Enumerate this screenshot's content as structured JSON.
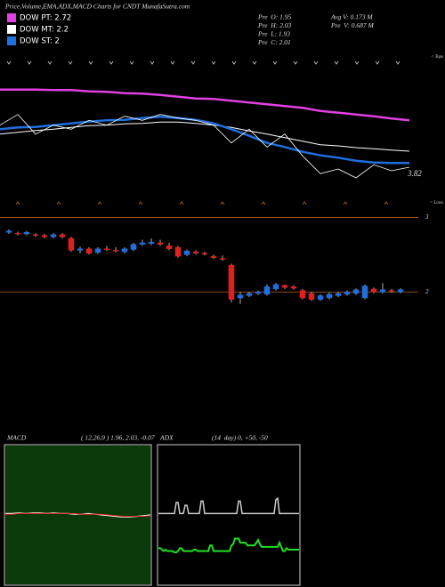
{
  "header": {
    "title": "Price,Volume,EMA,ADX,MACD Charts for CNDT MunafaSutra.com",
    "stats": [
      [
        "Pre  O: 1.95",
        "Avg V: 0.173 M"
      ],
      [
        "Pre  H: 2.03",
        "Pre  V: 0.687 M"
      ],
      [
        "Pre  L: 1.93"
      ],
      [
        "Pre  C: 2.01"
      ]
    ]
  },
  "chart_data": [
    {
      "type": "line",
      "ylim": [
        1.15,
        3.85
      ],
      "annotations": [
        "3.82",
        "< Tops",
        "< Lows"
      ],
      "series": [
        {
          "name": "DOW PT: 2.72",
          "color": "#e040e0",
          "width": 2.5,
          "values": [
            3.24,
            3.24,
            3.24,
            3.23,
            3.23,
            3.21,
            3.2,
            3.18,
            3.17,
            3.15,
            3.12,
            3.09,
            3.08,
            3.05,
            3.02,
            2.99,
            2.96,
            2.93,
            2.88,
            2.85,
            2.82,
            2.79,
            2.75,
            2.72
          ]
        },
        {
          "name": "DOW MT: 2.2",
          "color": "#ffffff",
          "width": 1,
          "values": [
            2.49,
            2.52,
            2.55,
            2.57,
            2.6,
            2.63,
            2.64,
            2.66,
            2.67,
            2.69,
            2.69,
            2.67,
            2.64,
            2.6,
            2.54,
            2.49,
            2.43,
            2.37,
            2.31,
            2.29,
            2.26,
            2.24,
            2.22,
            2.2
          ]
        },
        {
          "name": "DOW ST: 2",
          "color": "#1e6fe0",
          "width": 2.5,
          "values": [
            2.57,
            2.6,
            2.61,
            2.64,
            2.67,
            2.7,
            2.72,
            2.73,
            2.76,
            2.78,
            2.76,
            2.73,
            2.67,
            2.57,
            2.46,
            2.34,
            2.27,
            2.19,
            2.13,
            2.09,
            2.04,
            2.01,
            2.0,
            2.0
          ]
        },
        {
          "color": "#ffffff",
          "width": 0.8,
          "values": [
            2.64,
            2.82,
            2.49,
            2.64,
            2.57,
            2.72,
            2.64,
            2.79,
            2.72,
            2.82,
            2.76,
            2.72,
            2.64,
            2.34,
            2.57,
            2.27,
            2.49,
            2.12,
            1.82,
            1.9,
            1.75,
            1.97,
            1.87,
            1.93
          ]
        }
      ]
    },
    {
      "type": "candlestick",
      "ylim": [
        1.8,
        3.15
      ],
      "yticks": [
        2,
        3
      ],
      "grid": true,
      "grid_color": "#b5651d",
      "up_color": "#1e6fe0",
      "down_color": "#e02020",
      "open": [
        2.8,
        2.79,
        2.78,
        2.77,
        2.76,
        2.74,
        2.77,
        2.72,
        2.56,
        2.58,
        2.53,
        2.58,
        2.56,
        2.54,
        2.57,
        2.64,
        2.65,
        2.66,
        2.62,
        2.6,
        2.5,
        2.54,
        2.52,
        2.48,
        2.45,
        2.36,
        1.92,
        1.95,
        1.98,
        1.97,
        2.04,
        2.09,
        2.07,
        2.02,
        1.98,
        1.9,
        1.92,
        1.95,
        1.97,
        1.98,
        1.92,
        2.04,
        2.0,
        2.02,
        2.0
      ],
      "high": [
        2.84,
        2.81,
        2.82,
        2.79,
        2.78,
        2.79,
        2.79,
        2.74,
        2.61,
        2.6,
        2.6,
        2.62,
        2.6,
        2.6,
        2.66,
        2.7,
        2.72,
        2.7,
        2.66,
        2.62,
        2.57,
        2.56,
        2.54,
        2.5,
        2.49,
        2.38,
        2.0,
        2.0,
        2.02,
        2.1,
        2.12,
        2.1,
        2.09,
        2.04,
        2.0,
        1.97,
        1.99,
        2.0,
        2.02,
        2.05,
        2.1,
        2.06,
        2.12,
        2.04,
        2.05
      ],
      "low": [
        2.78,
        2.76,
        2.76,
        2.74,
        2.72,
        2.72,
        2.72,
        2.54,
        2.52,
        2.5,
        2.51,
        2.55,
        2.53,
        2.52,
        2.55,
        2.62,
        2.63,
        2.62,
        2.56,
        2.46,
        2.48,
        2.5,
        2.49,
        2.44,
        2.42,
        1.86,
        1.84,
        1.93,
        1.96,
        1.95,
        2.02,
        2.04,
        2.03,
        1.9,
        1.88,
        1.88,
        1.9,
        1.93,
        1.95,
        1.96,
        1.9,
        1.98,
        1.98,
        1.99,
        1.98
      ],
      "close": [
        2.82,
        2.78,
        2.8,
        2.76,
        2.74,
        2.77,
        2.74,
        2.56,
        2.58,
        2.52,
        2.58,
        2.57,
        2.55,
        2.58,
        2.64,
        2.66,
        2.67,
        2.64,
        2.58,
        2.48,
        2.55,
        2.52,
        2.51,
        2.46,
        2.44,
        1.9,
        1.96,
        1.98,
        2.0,
        2.07,
        2.1,
        2.06,
        2.05,
        1.92,
        1.9,
        1.95,
        1.97,
        1.98,
        2.0,
        2.03,
        2.08,
        2.0,
        2.03,
        2.01,
        2.03
      ]
    },
    {
      "type": "line",
      "title": "MACD",
      "subtitle": "( 12,26,9 ) 1.96, 2.03, -0.07",
      "ylim": [
        -1,
        1
      ],
      "background": "#0a3a0a",
      "series": [
        {
          "color": "#ffffff",
          "width": 1.2,
          "values": [
            0.02,
            0.02,
            0.03,
            0.02,
            0.03,
            0.03,
            0.02,
            0.03,
            0.02,
            0.02,
            0.01,
            0.01,
            0.02,
            0.01,
            0.0,
            -0.01,
            -0.02,
            -0.03,
            -0.03,
            -0.02,
            -0.01,
            0.0
          ]
        },
        {
          "color": "#e02020",
          "width": 1,
          "values": [
            0.01,
            0.01,
            0.02,
            0.02,
            0.02,
            0.02,
            0.02,
            0.02,
            0.02,
            0.02,
            0.02,
            0.01,
            0.01,
            0.01,
            0.01,
            0.0,
            -0.01,
            -0.02,
            -0.02,
            -0.02,
            -0.02,
            -0.01
          ]
        }
      ]
    },
    {
      "type": "line",
      "title": "ADX",
      "subtitle": "(14  day) 0, +50, -50",
      "ylim": [
        0,
        100
      ],
      "background": "#000000",
      "series": [
        {
          "color": "#cccccc",
          "width": 1.5,
          "values": [
            51,
            51,
            51,
            51,
            51,
            51,
            51,
            51,
            51,
            51,
            59,
            59,
            51,
            51,
            51,
            57,
            57,
            51,
            51,
            51,
            51,
            51,
            51,
            51,
            60,
            60,
            51,
            51,
            51,
            51,
            51,
            51,
            51,
            51,
            51,
            51,
            51,
            51,
            51,
            51,
            51,
            51,
            51,
            51,
            51,
            60,
            60,
            51,
            51,
            51,
            51,
            51,
            51,
            51,
            51,
            51,
            51,
            51,
            51,
            51,
            51,
            51,
            51,
            51,
            51,
            51,
            61,
            62,
            51,
            51,
            51,
            51,
            51,
            51,
            51,
            51,
            51,
            51,
            51,
            51
          ]
        },
        {
          "color": "#ff8c00",
          "width": 1,
          "values": [
            null,
            null,
            null,
            null,
            null,
            null,
            null,
            null,
            null,
            null,
            null,
            null,
            null,
            null,
            null,
            null,
            null,
            null,
            null,
            null,
            null,
            null,
            null,
            null,
            null,
            null,
            null,
            null,
            null,
            null,
            null,
            null,
            null,
            null,
            null,
            null,
            null,
            null,
            null,
            null,
            null,
            null,
            null,
            null,
            null,
            null,
            null,
            null,
            null,
            null,
            null,
            null,
            null,
            null,
            null,
            null,
            null,
            null,
            null,
            null,
            null,
            null,
            null,
            null,
            null,
            null,
            null,
            null,
            null,
            null,
            null,
            null,
            null,
            null,
            null,
            null,
            null,
            null,
            null,
            null
          ]
        },
        {
          "color": "#20e020",
          "width": 2,
          "values": [
            26,
            26,
            25,
            24,
            25,
            24,
            24,
            24,
            24,
            23,
            23,
            24,
            26,
            26,
            24,
            24,
            24,
            24,
            24,
            24,
            25,
            25,
            24,
            24,
            24,
            24,
            24,
            24,
            24,
            28,
            28,
            24,
            24,
            24,
            24,
            24,
            24,
            24,
            24,
            24,
            24,
            28,
            29,
            33,
            33,
            33,
            30,
            30,
            30,
            30,
            28,
            28,
            28,
            28,
            28,
            30,
            32,
            29,
            27,
            27,
            27,
            27,
            27,
            27,
            27,
            27,
            27,
            27,
            30,
            27,
            24,
            24,
            26,
            25,
            25,
            25,
            25,
            25,
            25,
            25
          ]
        }
      ]
    }
  ]
}
